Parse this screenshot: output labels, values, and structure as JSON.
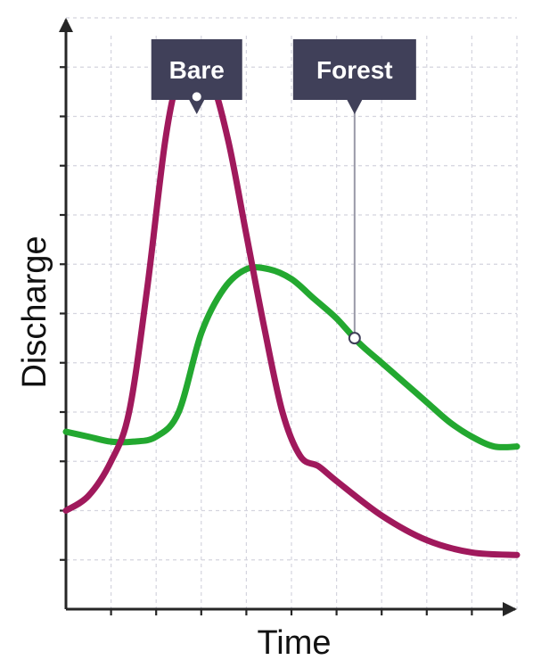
{
  "chart_data": {
    "type": "line",
    "xlabel": "Time",
    "ylabel": "Discharge",
    "xlim": [
      0,
      10
    ],
    "ylim": [
      0,
      12
    ],
    "grid": true,
    "series": [
      {
        "name": "Bare",
        "color": "#a0195c",
        "x": [
          0,
          0.5,
          1.0,
          1.4,
          1.8,
          2.2,
          2.5,
          2.8,
          3.2,
          3.6,
          4.0,
          4.4,
          4.8,
          5.2,
          5.6,
          6.0,
          7.0,
          8.0,
          9.0,
          10.0
        ],
        "y": [
          2.0,
          2.3,
          3.0,
          4.0,
          6.5,
          9.5,
          10.8,
          11.1,
          10.8,
          9.5,
          7.6,
          5.7,
          4.0,
          3.1,
          2.9,
          2.6,
          1.9,
          1.4,
          1.15,
          1.1
        ]
      },
      {
        "name": "Forest",
        "color": "#23a830",
        "x": [
          0,
          0.5,
          1.0,
          1.5,
          2.0,
          2.5,
          3.0,
          3.5,
          4.0,
          4.5,
          5.0,
          5.5,
          6.0,
          6.5,
          7.0,
          7.5,
          8.0,
          8.5,
          9.0,
          9.5,
          10.0
        ],
        "y": [
          3.6,
          3.5,
          3.4,
          3.4,
          3.5,
          4.0,
          5.6,
          6.5,
          6.9,
          6.9,
          6.7,
          6.3,
          5.9,
          5.4,
          5.0,
          4.6,
          4.2,
          3.8,
          3.5,
          3.3,
          3.3
        ]
      }
    ],
    "callouts": [
      {
        "label": "Bare",
        "series": "Bare",
        "x": 2.9,
        "y": 10.4
      },
      {
        "label": "Forest",
        "series": "Forest",
        "x": 6.4,
        "y": 5.5
      }
    ]
  }
}
